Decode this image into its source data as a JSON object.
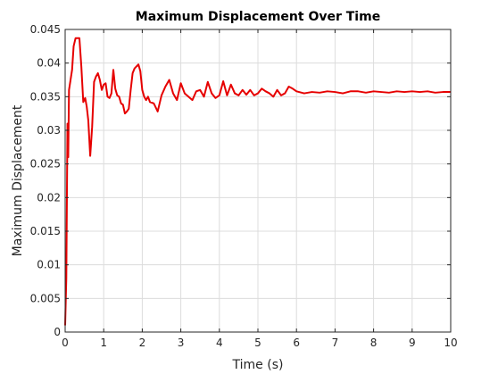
{
  "chart_data": {
    "type": "line",
    "title": "Maximum Displacement Over Time",
    "xlabel": "Time (s)",
    "ylabel": "Maximum Displacement",
    "xlim": [
      0,
      10
    ],
    "ylim": [
      0,
      0.045
    ],
    "x_ticks": [
      0,
      1,
      2,
      3,
      4,
      5,
      6,
      7,
      8,
      9,
      10
    ],
    "x_tick_labels": [
      "0",
      "1",
      "2",
      "3",
      "4",
      "5",
      "6",
      "7",
      "8",
      "9",
      "10"
    ],
    "y_ticks": [
      0,
      0.005,
      0.01,
      0.015,
      0.02,
      0.025,
      0.03,
      0.035,
      0.04,
      0.045
    ],
    "y_tick_labels": [
      "0",
      "0.005",
      "0.01",
      "0.015",
      "0.02",
      "0.025",
      "0.03",
      "0.035",
      "0.04",
      "0.045"
    ],
    "grid": true,
    "legend": "none",
    "colors": {
      "line": "#e60000",
      "grid": "#dcdcdc",
      "axis": "#262626"
    },
    "series": [
      {
        "x": [
          0,
          0.03,
          0.06,
          0.08,
          0.1,
          0.14,
          0.18,
          0.22,
          0.27,
          0.32,
          0.37,
          0.42,
          0.47,
          0.52,
          0.56,
          0.6,
          0.65,
          0.7,
          0.75,
          0.8,
          0.85,
          0.9,
          0.95,
          1.0,
          1.05,
          1.1,
          1.15,
          1.2,
          1.25,
          1.3,
          1.35,
          1.4,
          1.45,
          1.5,
          1.55,
          1.6,
          1.65,
          1.7,
          1.75,
          1.8,
          1.85,
          1.9,
          1.95,
          2.0,
          2.05,
          2.1,
          2.15,
          2.2,
          2.3,
          2.4,
          2.5,
          2.6,
          2.7,
          2.8,
          2.9,
          3.0,
          3.1,
          3.2,
          3.3,
          3.4,
          3.5,
          3.6,
          3.7,
          3.8,
          3.9,
          4.0,
          4.1,
          4.2,
          4.3,
          4.4,
          4.5,
          4.6,
          4.7,
          4.8,
          4.9,
          5.0,
          5.1,
          5.2,
          5.3,
          5.4,
          5.5,
          5.6,
          5.7,
          5.8,
          5.9,
          6.0,
          6.2,
          6.4,
          6.6,
          6.8,
          7.0,
          7.2,
          7.4,
          7.6,
          7.8,
          8.0,
          8.2,
          8.4,
          8.6,
          8.8,
          9.0,
          9.2,
          9.4,
          9.6,
          9.8,
          10.0
        ],
        "y": [
          0.001,
          0.008,
          0.031,
          0.026,
          0.036,
          0.0375,
          0.039,
          0.0425,
          0.0437,
          0.0437,
          0.0437,
          0.0395,
          0.0342,
          0.0348,
          0.0335,
          0.0315,
          0.0262,
          0.0305,
          0.0372,
          0.038,
          0.0385,
          0.0375,
          0.036,
          0.0368,
          0.037,
          0.035,
          0.0348,
          0.0355,
          0.039,
          0.0362,
          0.0352,
          0.035,
          0.034,
          0.0338,
          0.0325,
          0.0328,
          0.0332,
          0.036,
          0.0385,
          0.0392,
          0.0395,
          0.0398,
          0.0388,
          0.036,
          0.035,
          0.0345,
          0.035,
          0.0342,
          0.034,
          0.0328,
          0.0352,
          0.0365,
          0.0375,
          0.0355,
          0.0345,
          0.037,
          0.0355,
          0.035,
          0.0345,
          0.0358,
          0.036,
          0.035,
          0.0372,
          0.0355,
          0.0348,
          0.0352,
          0.0373,
          0.0352,
          0.0368,
          0.0355,
          0.0352,
          0.036,
          0.0353,
          0.036,
          0.0352,
          0.0355,
          0.0362,
          0.0358,
          0.0355,
          0.035,
          0.036,
          0.0352,
          0.0355,
          0.0365,
          0.0362,
          0.0358,
          0.0355,
          0.0357,
          0.0356,
          0.0358,
          0.0357,
          0.0355,
          0.0358,
          0.0358,
          0.0356,
          0.0358,
          0.0357,
          0.0356,
          0.0358,
          0.0357,
          0.0358,
          0.0357,
          0.0358,
          0.0356,
          0.0357,
          0.0357
        ]
      }
    ]
  }
}
